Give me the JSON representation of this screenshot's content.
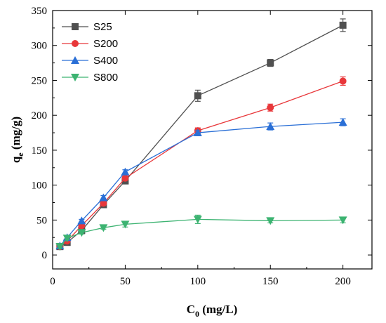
{
  "chart_data": {
    "type": "line",
    "xlabel": {
      "main": "C",
      "sub": "0",
      "rest": " (mg/L)"
    },
    "ylabel": {
      "main": "q",
      "sub": "e",
      "rest": " (mg/g)"
    },
    "xlim": [
      0,
      220
    ],
    "ylim": [
      -20,
      350
    ],
    "xticks": [
      0,
      50,
      100,
      150,
      200
    ],
    "yticks": [
      0,
      50,
      100,
      150,
      200,
      250,
      300,
      350
    ],
    "x": [
      5,
      10,
      20,
      35,
      50,
      100,
      150,
      200
    ],
    "legend_position": "top-left",
    "series": [
      {
        "name": "S25",
        "color": "#505050",
        "marker": "square",
        "values": [
          12,
          18,
          35,
          72,
          106,
          228,
          275,
          329
        ],
        "errors": [
          2,
          2,
          2,
          3,
          3,
          8,
          5,
          9
        ]
      },
      {
        "name": "S200",
        "color": "#e8373a",
        "marker": "circle",
        "values": [
          12,
          20,
          42,
          74,
          110,
          178,
          211,
          249
        ],
        "errors": [
          2,
          2,
          2,
          3,
          3,
          4,
          5,
          6
        ]
      },
      {
        "name": "S400",
        "color": "#2a6fd6",
        "marker": "triangle-up",
        "values": [
          13,
          25,
          49,
          82,
          119,
          175,
          184,
          190
        ],
        "errors": [
          2,
          2,
          2,
          3,
          3,
          3,
          5,
          5
        ]
      },
      {
        "name": "S800",
        "color": "#3cb371",
        "marker": "triangle-down",
        "values": [
          12,
          24,
          32,
          39,
          44,
          51,
          49,
          50
        ],
        "errors": [
          2,
          2,
          2,
          2,
          4,
          6,
          3,
          4
        ]
      }
    ]
  }
}
